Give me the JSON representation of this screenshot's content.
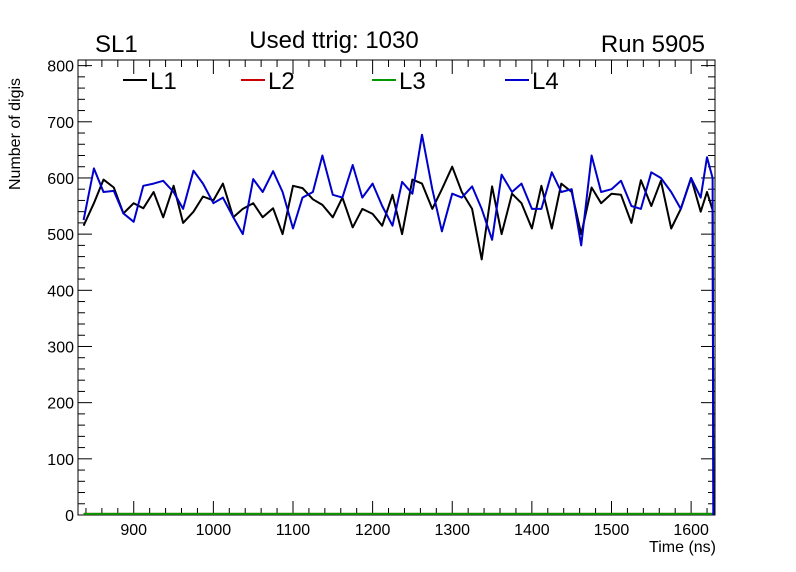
{
  "chart_data": {
    "type": "line",
    "corner_label": "SL1",
    "title": "Used ttrig: 1030",
    "run_label": "Run 5905",
    "xlabel": "Time (ns)",
    "ylabel": "Number of digis",
    "xlim": [
      830,
      1630
    ],
    "ylim": [
      0,
      810
    ],
    "x_ticks": [
      900,
      1000,
      1100,
      1200,
      1300,
      1400,
      1500,
      1600
    ],
    "y_ticks": [
      0,
      100,
      200,
      300,
      400,
      500,
      600,
      700,
      800
    ],
    "colors": {
      "L1": "#000000",
      "L2": "#cc0000",
      "L3": "#009900",
      "L4": "#0000cc"
    },
    "x": [
      837,
      850,
      862,
      875,
      887,
      900,
      912,
      925,
      937,
      950,
      962,
      975,
      987,
      1000,
      1012,
      1025,
      1037,
      1050,
      1062,
      1075,
      1087,
      1100,
      1112,
      1125,
      1137,
      1150,
      1162,
      1175,
      1187,
      1200,
      1212,
      1225,
      1237,
      1250,
      1262,
      1275,
      1287,
      1300,
      1312,
      1325,
      1337,
      1350,
      1362,
      1375,
      1387,
      1400,
      1412,
      1425,
      1437,
      1450,
      1462,
      1475,
      1487,
      1500,
      1512,
      1525,
      1537,
      1550,
      1562,
      1575,
      1587,
      1600,
      1612,
      1620,
      1627
    ],
    "series": [
      {
        "name": "L1",
        "values": [
          515,
          555,
          597,
          583,
          537,
          555,
          546,
          575,
          530,
          586,
          520,
          540,
          567,
          560,
          590,
          530,
          545,
          555,
          530,
          546,
          500,
          586,
          582,
          562,
          552,
          530,
          565,
          512,
          545,
          536,
          515,
          570,
          500,
          597,
          590,
          545,
          580,
          620,
          575,
          545,
          455,
          585,
          500,
          572,
          555,
          510,
          586,
          510,
          590,
          575,
          500,
          583,
          555,
          572,
          570,
          520,
          596,
          550,
          595,
          510,
          545,
          600,
          540,
          575,
          543
        ]
      },
      {
        "name": "L2",
        "values": [
          2,
          2,
          2,
          2,
          2,
          2,
          2,
          2,
          2,
          2,
          2,
          2,
          2,
          2,
          2,
          2,
          2,
          2,
          2,
          2,
          2,
          2,
          2,
          2,
          2,
          2,
          2,
          2,
          2,
          2,
          2,
          2,
          2,
          2,
          2,
          2,
          2,
          2,
          2,
          2,
          2,
          2,
          2,
          2,
          2,
          2,
          2,
          2,
          2,
          2,
          2,
          2,
          2,
          2,
          2,
          2,
          2,
          2,
          2,
          2,
          2,
          2,
          2,
          2,
          2
        ]
      },
      {
        "name": "L3",
        "values": [
          2,
          2,
          2,
          2,
          2,
          2,
          2,
          2,
          2,
          2,
          2,
          2,
          2,
          2,
          2,
          2,
          2,
          2,
          2,
          2,
          2,
          2,
          2,
          2,
          2,
          2,
          2,
          2,
          2,
          2,
          2,
          2,
          2,
          2,
          2,
          2,
          2,
          2,
          2,
          2,
          2,
          2,
          2,
          2,
          2,
          2,
          2,
          2,
          2,
          2,
          2,
          2,
          2,
          2,
          2,
          2,
          2,
          2,
          2,
          2,
          2,
          2,
          2,
          2,
          2
        ]
      },
      {
        "name": "L4",
        "values": [
          525,
          617,
          575,
          577,
          537,
          522,
          586,
          590,
          595,
          575,
          545,
          613,
          590,
          555,
          565,
          530,
          500,
          598,
          575,
          612,
          575,
          510,
          565,
          575,
          640,
          570,
          565,
          623,
          565,
          590,
          550,
          515,
          593,
          572,
          677,
          580,
          505,
          572,
          565,
          585,
          545,
          490,
          606,
          575,
          590,
          545,
          545,
          610,
          575,
          580,
          480,
          640,
          575,
          580,
          595,
          550,
          545,
          610,
          600,
          575,
          545,
          600,
          565,
          637,
          600
        ]
      }
    ]
  }
}
